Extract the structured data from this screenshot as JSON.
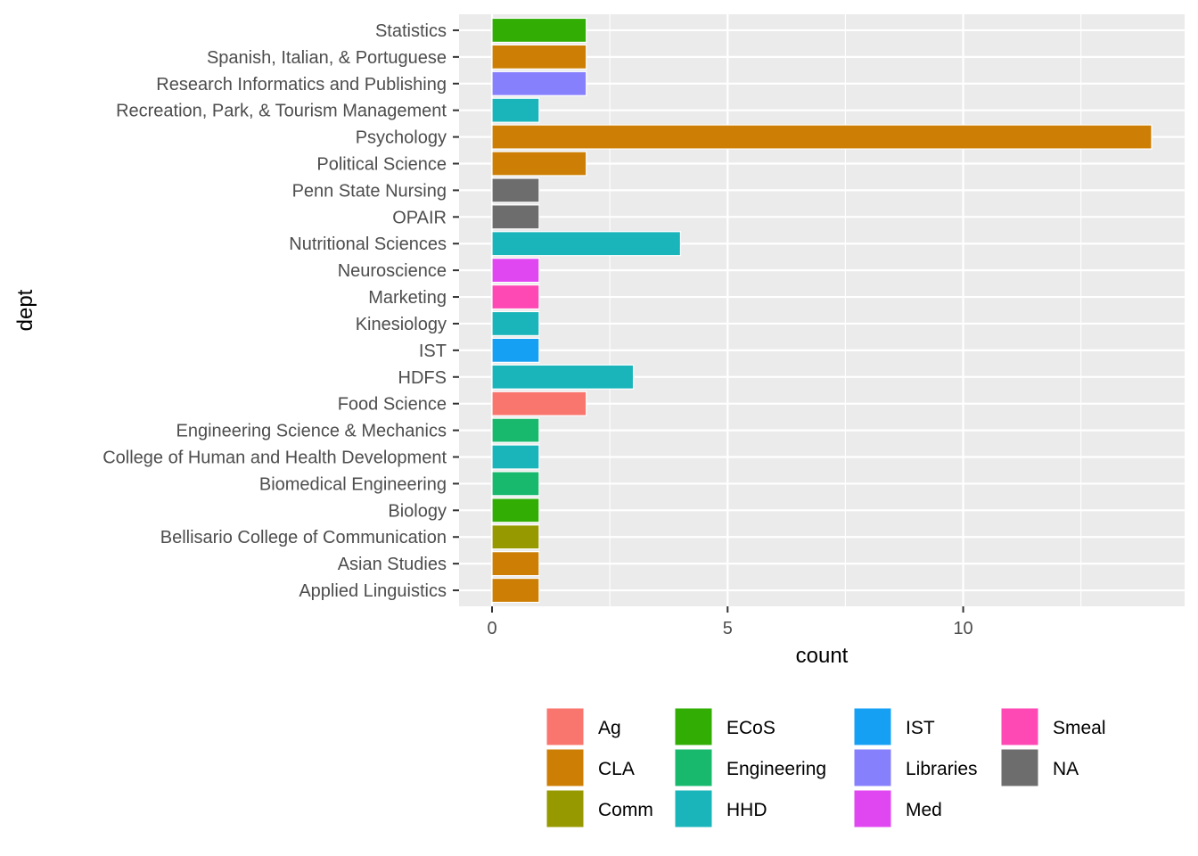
{
  "chart_data": {
    "type": "bar",
    "orientation": "horizontal",
    "xlabel": "count",
    "ylabel": "dept",
    "xlim": [
      -0.7,
      14.7
    ],
    "x_ticks": [
      0,
      5,
      10
    ],
    "x_tick_labels": [
      "0",
      "5",
      "10"
    ],
    "grid": true,
    "legend_position": "bottom",
    "categories": [
      "Statistics",
      "Spanish, Italian, & Portuguese",
      "Research Informatics and Publishing",
      "Recreation, Park, & Tourism Management",
      "Psychology",
      "Political Science",
      "Penn State Nursing",
      "OPAIR",
      "Nutritional Sciences",
      "Neuroscience",
      "Marketing",
      "Kinesiology",
      "IST",
      "HDFS",
      "Food Science",
      "Engineering Science & Mechanics",
      "College of Human and Health Development",
      "Biomedical Engineering",
      "Biology",
      "Bellisario College of Communication",
      "Asian Studies",
      "Applied Linguistics"
    ],
    "values": [
      2,
      2,
      2,
      1,
      14,
      2,
      1,
      1,
      4,
      1,
      1,
      1,
      1,
      3,
      2,
      1,
      1,
      1,
      1,
      1,
      1,
      1
    ],
    "groups": [
      "ECoS",
      "CLA",
      "Libraries",
      "HHD",
      "CLA",
      "CLA",
      "NA",
      "NA",
      "HHD",
      "Med",
      "Smeal",
      "HHD",
      "IST",
      "HHD",
      "Ag",
      "Engineering",
      "HHD",
      "Engineering",
      "ECoS",
      "Comm",
      "CLA",
      "CLA"
    ],
    "legend": [
      {
        "name": "Ag",
        "color": "#F8766D"
      },
      {
        "name": "CLA",
        "color": "#CD7F05"
      },
      {
        "name": "Comm",
        "color": "#979900"
      },
      {
        "name": "ECoS",
        "color": "#31AD04"
      },
      {
        "name": "Engineering",
        "color": "#18B86D"
      },
      {
        "name": "HHD",
        "color": "#19B5BA"
      },
      {
        "name": "IST",
        "color": "#16A0F4"
      },
      {
        "name": "Libraries",
        "color": "#8780FD"
      },
      {
        "name": "Med",
        "color": "#E047F1"
      },
      {
        "name": "Smeal",
        "color": "#FE48B4"
      },
      {
        "name": "NA",
        "color": "#6D6D6D"
      }
    ]
  }
}
